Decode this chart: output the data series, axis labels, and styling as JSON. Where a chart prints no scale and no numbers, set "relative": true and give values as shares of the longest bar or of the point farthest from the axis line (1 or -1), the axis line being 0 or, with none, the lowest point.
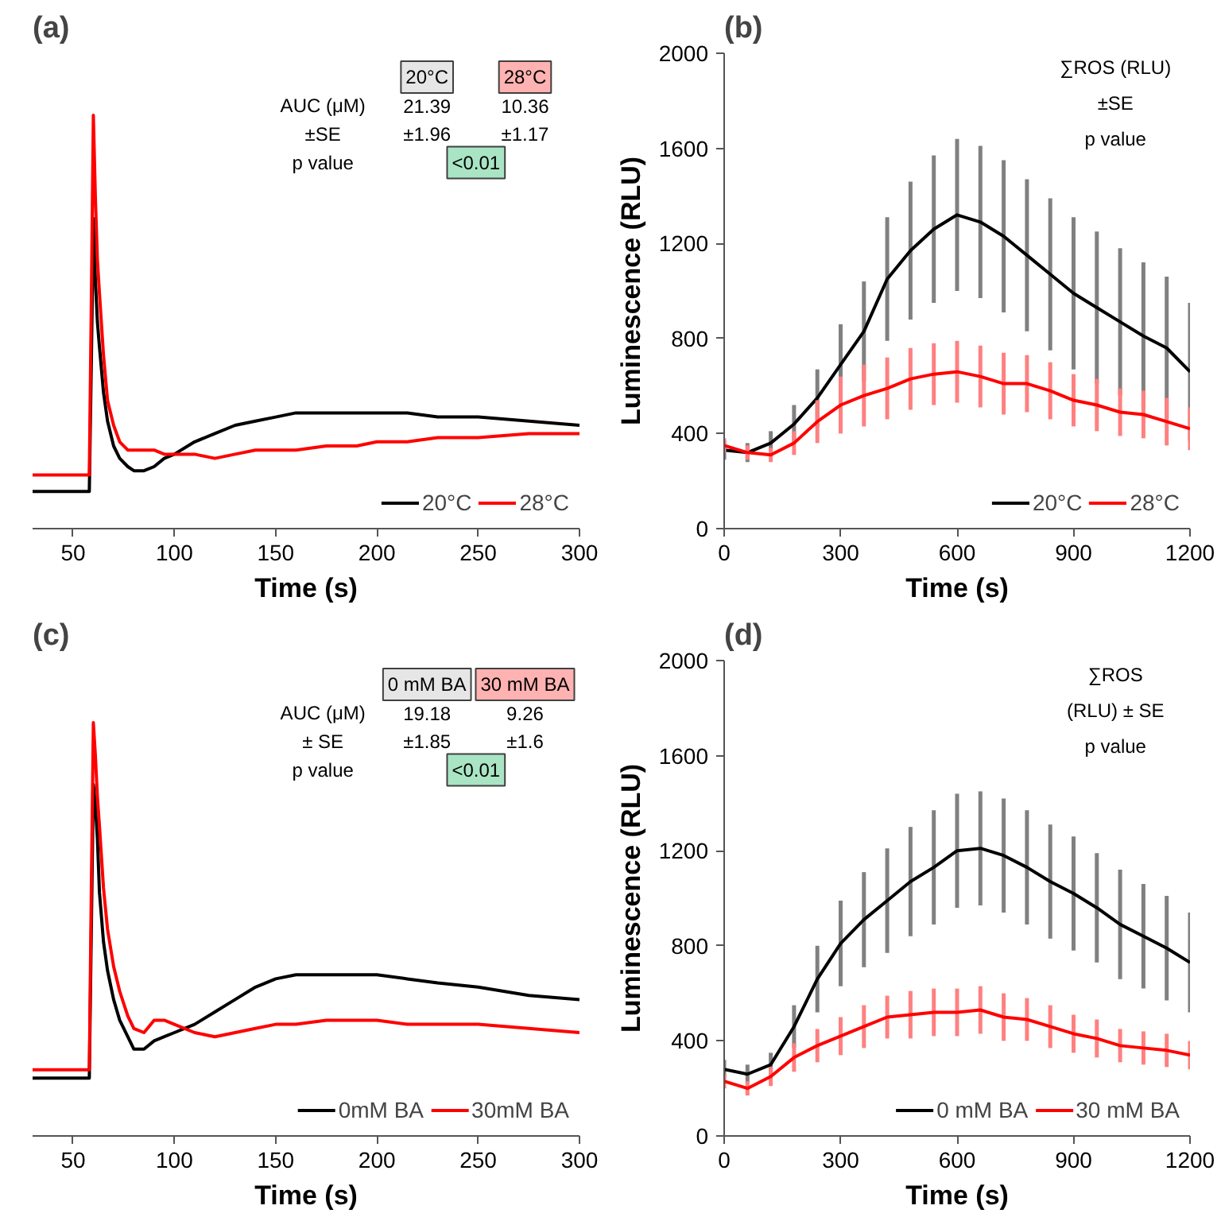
{
  "chart_data": [
    {
      "type": "line",
      "title": "(a)",
      "xlabel": "Time (s)",
      "relative": true,
      "x": [
        30,
        40,
        50,
        58,
        59,
        60,
        61,
        62,
        63,
        65,
        67,
        70,
        73,
        77,
        80,
        85,
        90,
        95,
        100,
        110,
        120,
        130,
        140,
        150,
        160,
        175,
        190,
        200,
        215,
        230,
        250,
        275,
        300
      ],
      "xlim": [
        30,
        300
      ],
      "xticks": [
        50,
        100,
        150,
        200,
        250,
        300
      ],
      "legend": "bottom right",
      "series": [
        {
          "name": "20°C",
          "color": "#000000",
          "values": [
            0.09,
            0.09,
            0.09,
            0.09,
            0.4,
            0.75,
            0.6,
            0.5,
            0.44,
            0.33,
            0.26,
            0.2,
            0.17,
            0.15,
            0.14,
            0.14,
            0.15,
            0.17,
            0.18,
            0.21,
            0.23,
            0.25,
            0.26,
            0.27,
            0.28,
            0.28,
            0.28,
            0.28,
            0.28,
            0.27,
            0.27,
            0.26,
            0.25
          ]
        },
        {
          "name": "28°C",
          "color": "#ff0000",
          "values": [
            0.13,
            0.13,
            0.13,
            0.13,
            0.55,
            1,
            0.8,
            0.65,
            0.57,
            0.42,
            0.31,
            0.25,
            0.21,
            0.19,
            0.19,
            0.19,
            0.19,
            0.18,
            0.18,
            0.18,
            0.17,
            0.18,
            0.19,
            0.19,
            0.19,
            0.2,
            0.2,
            0.21,
            0.21,
            0.22,
            0.22,
            0.23,
            0.23
          ]
        }
      ],
      "annotations": [
        "20°C",
        "28°C",
        "AUC (μM)",
        "±SE",
        "21.39",
        "±1.96",
        "10.36",
        "±1.17",
        "p value",
        "<0.01"
      ]
    },
    {
      "type": "line",
      "title": "(b)",
      "xlabel": "Time (s)",
      "ylabel": "Luminescence (RLU)",
      "x": [
        0,
        60,
        120,
        180,
        240,
        300,
        360,
        420,
        480,
        540,
        600,
        660,
        720,
        780,
        840,
        900,
        960,
        1020,
        1080,
        1140,
        1200
      ],
      "xlim": [
        0,
        1200
      ],
      "xticks": [
        0,
        300,
        600,
        900,
        1200
      ],
      "ylim": [
        0,
        2000
      ],
      "yticks": [
        0,
        400,
        800,
        1200,
        1600,
        2000
      ],
      "legend": "bottom right",
      "series": [
        {
          "name": "20°C",
          "color": "#000000",
          "values": [
            330,
            320,
            360,
            440,
            550,
            690,
            830,
            1050,
            1170,
            1260,
            1320,
            1290,
            1230,
            1150,
            1070,
            990,
            930,
            870,
            810,
            760,
            660
          ],
          "errors": [
            40,
            40,
            50,
            80,
            120,
            170,
            210,
            260,
            290,
            310,
            320,
            320,
            320,
            320,
            320,
            320,
            320,
            310,
            310,
            300,
            290
          ]
        },
        {
          "name": "28°C",
          "color": "#ff0000",
          "values": [
            350,
            320,
            310,
            360,
            450,
            520,
            560,
            590,
            630,
            650,
            660,
            640,
            610,
            610,
            580,
            540,
            520,
            490,
            480,
            450,
            420
          ],
          "errors": [
            30,
            30,
            30,
            50,
            90,
            120,
            130,
            130,
            130,
            130,
            130,
            130,
            130,
            120,
            120,
            110,
            110,
            100,
            100,
            100,
            90
          ]
        }
      ],
      "annotations": [
        "∑ROS (RLU)",
        "±SE",
        "p value"
      ]
    },
    {
      "type": "line",
      "title": "(c)",
      "xlabel": "Time (s)",
      "relative": true,
      "x": [
        30,
        40,
        50,
        58,
        59,
        60,
        61,
        62,
        63,
        65,
        67,
        70,
        73,
        77,
        80,
        85,
        90,
        95,
        100,
        110,
        120,
        130,
        140,
        150,
        160,
        175,
        190,
        200,
        215,
        230,
        250,
        275,
        300
      ],
      "xlim": [
        30,
        300
      ],
      "xticks": [
        50,
        100,
        150,
        200,
        250,
        300
      ],
      "legend": "bottom right",
      "series": [
        {
          "name": "0mM BA",
          "color": "#000000",
          "values": [
            0.14,
            0.14,
            0.14,
            0.14,
            0.5,
            0.85,
            0.8,
            0.72,
            0.59,
            0.47,
            0.4,
            0.33,
            0.28,
            0.24,
            0.21,
            0.21,
            0.23,
            0.24,
            0.25,
            0.27,
            0.3,
            0.33,
            0.36,
            0.38,
            0.39,
            0.39,
            0.39,
            0.39,
            0.38,
            0.37,
            0.36,
            0.34,
            0.33
          ]
        },
        {
          "name": "30mM BA",
          "color": "#ff0000",
          "values": [
            0.16,
            0.16,
            0.16,
            0.16,
            0.6,
            1,
            0.92,
            0.82,
            0.75,
            0.6,
            0.5,
            0.41,
            0.35,
            0.29,
            0.26,
            0.25,
            0.28,
            0.28,
            0.27,
            0.25,
            0.24,
            0.25,
            0.26,
            0.27,
            0.27,
            0.28,
            0.28,
            0.28,
            0.27,
            0.27,
            0.27,
            0.26,
            0.25
          ]
        }
      ],
      "annotations": [
        "0 mM BA",
        "30 mM BA",
        "AUC (μM)",
        "± SE",
        "19.18",
        "±1.85",
        "9.26",
        "±1.6",
        "p value",
        "<0.01"
      ]
    },
    {
      "type": "line",
      "title": "(d)",
      "xlabel": "Time (s)",
      "ylabel": "Luminescence (RLU)",
      "x": [
        0,
        60,
        120,
        180,
        240,
        300,
        360,
        420,
        480,
        540,
        600,
        660,
        720,
        780,
        840,
        900,
        960,
        1020,
        1080,
        1140,
        1200
      ],
      "xlim": [
        0,
        1200
      ],
      "xticks": [
        0,
        300,
        600,
        900,
        1200
      ],
      "ylim": [
        0,
        2000
      ],
      "yticks": [
        0,
        400,
        800,
        1200,
        1600,
        2000
      ],
      "legend": "bottom right",
      "series": [
        {
          "name": "0 mM BA",
          "color": "#000000",
          "values": [
            280,
            260,
            300,
            460,
            660,
            810,
            910,
            990,
            1070,
            1130,
            1200,
            1210,
            1180,
            1130,
            1070,
            1020,
            960,
            890,
            840,
            790,
            730
          ],
          "errors": [
            40,
            40,
            50,
            90,
            140,
            180,
            200,
            220,
            230,
            240,
            240,
            240,
            240,
            240,
            240,
            240,
            230,
            230,
            220,
            220,
            210
          ]
        },
        {
          "name": "30 mM BA",
          "color": "#ff0000",
          "values": [
            230,
            200,
            250,
            330,
            380,
            420,
            460,
            500,
            510,
            520,
            520,
            530,
            500,
            490,
            460,
            430,
            410,
            380,
            370,
            360,
            340
          ],
          "errors": [
            30,
            30,
            40,
            60,
            70,
            80,
            90,
            90,
            100,
            100,
            100,
            100,
            100,
            90,
            90,
            80,
            80,
            70,
            70,
            70,
            60
          ]
        }
      ],
      "annotations": [
        "∑ROS",
        "(RLU) ± SE",
        "p value"
      ]
    }
  ]
}
